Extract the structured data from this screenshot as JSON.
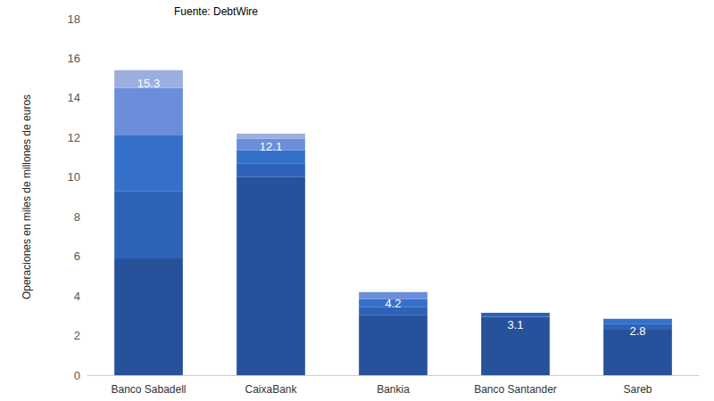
{
  "chart_data": {
    "type": "bar",
    "source": "Fuente: DebtWire",
    "y_label": "Operaciones en miles de millones de euros",
    "categories": [
      "Banco Sabadell",
      "CaixaBank",
      "Bankia",
      "Banco Santander",
      "Sareb"
    ],
    "series": [
      {
        "color": "#27529b",
        "values": [
          5.9,
          10.0,
          3.05,
          2.95,
          2.3
        ]
      },
      {
        "color": "#2e62b8",
        "values": [
          3.4,
          0.7,
          0.4,
          0.2,
          0.3
        ]
      },
      {
        "color": "#3571ca",
        "values": [
          2.8,
          0.65,
          0.4,
          null,
          0.25
        ]
      },
      {
        "color": "#6b8edb",
        "values": [
          2.4,
          0.6,
          0.35,
          null,
          null
        ]
      },
      {
        "color": "#9caee0",
        "values": [
          0.9,
          0.25,
          null,
          null,
          null
        ]
      }
    ],
    "totals": [
      15.3,
      12.1,
      4.2,
      3.1,
      2.8
    ],
    "stacked": true,
    "ylim": [
      0,
      18
    ],
    "yticks": [
      0,
      2,
      4,
      6,
      8,
      10,
      12,
      14,
      16,
      18
    ],
    "grid": false
  }
}
